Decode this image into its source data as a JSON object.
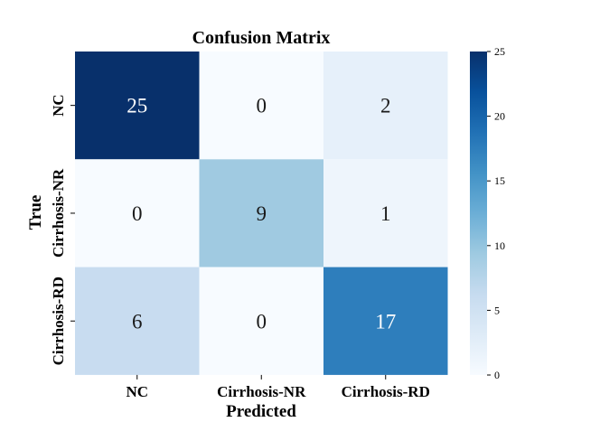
{
  "chart_data": {
    "type": "heatmap",
    "title": "Confusion Matrix",
    "xlabel": "Predicted",
    "ylabel": "True",
    "x_categories": [
      "NC",
      "Cirrhosis-NR",
      "Cirrhosis-RD"
    ],
    "y_categories": [
      "NC",
      "Cirrhosis-NR",
      "Cirrhosis-RD"
    ],
    "matrix": [
      [
        25,
        0,
        2
      ],
      [
        0,
        9,
        1
      ],
      [
        6,
        0,
        17
      ]
    ],
    "colormap": "Blues",
    "vmin": 0,
    "vmax": 25,
    "colorbar_ticks": [
      0,
      5,
      10,
      15,
      20,
      25
    ],
    "cell_colors": [
      [
        "#08306b",
        "#f7fbff",
        "#e6f0fa"
      ],
      [
        "#f7fbff",
        "#a0cae1",
        "#eef5fc"
      ],
      [
        "#c8dcf0",
        "#f7fbff",
        "#2e7ebc"
      ]
    ],
    "colorbar_gradient": [
      "#f7fbff",
      "#deebf7",
      "#c6dbef",
      "#9ecae1",
      "#6baed6",
      "#4292c6",
      "#2171b5",
      "#08519c",
      "#08306b"
    ]
  }
}
